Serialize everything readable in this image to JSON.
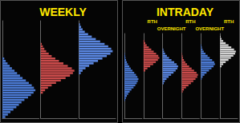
{
  "chart_data": [
    {
      "type": "bar",
      "title": "WEEKLY",
      "orientation": "horizontal",
      "tick_labels": false,
      "xlim": [
        0,
        100
      ],
      "categories": [
        null,
        null,
        null,
        null,
        null,
        null,
        null,
        null,
        null,
        null,
        null,
        null,
        null,
        null,
        null,
        null,
        null,
        null,
        null,
        null,
        null,
        null,
        null,
        null,
        null,
        null,
        null,
        null,
        null,
        null,
        null,
        null,
        null,
        null,
        null,
        null,
        null,
        null,
        null,
        null
      ],
      "series": [
        {
          "color": "#4a78d0",
          "values": [
            8,
            15,
            22,
            30,
            38,
            45,
            52,
            60,
            70,
            78,
            85,
            90,
            86,
            80,
            72,
            64,
            55,
            48,
            40,
            33,
            26,
            20,
            14,
            9,
            5,
            null,
            null,
            null,
            null,
            null,
            null,
            null,
            null,
            null,
            null,
            null,
            null,
            null,
            null,
            null
          ]
        },
        {
          "color": "#c84a4a",
          "values": [
            null,
            null,
            null,
            null,
            null,
            null,
            null,
            null,
            null,
            null,
            6,
            12,
            20,
            30,
            42,
            55,
            68,
            80,
            88,
            92,
            85,
            74,
            62,
            50,
            40,
            30,
            22,
            15,
            10,
            6,
            3,
            null,
            null,
            null,
            null,
            null,
            null,
            null,
            null,
            null
          ]
        },
        {
          "color": "#5a86e0",
          "values": [
            null,
            null,
            null,
            null,
            null,
            null,
            null,
            null,
            null,
            null,
            null,
            null,
            null,
            null,
            null,
            null,
            null,
            null,
            5,
            10,
            18,
            28,
            40,
            52,
            64,
            76,
            86,
            92,
            88,
            80,
            70,
            58,
            46,
            35,
            25,
            16,
            10,
            6,
            3,
            null
          ]
        }
      ]
    },
    {
      "type": "bar",
      "title": "INTRADAY",
      "orientation": "horizontal",
      "tick_labels": false,
      "xlim": [
        0,
        100
      ],
      "annotations": [
        null,
        "RTH",
        "OVERNIGHT",
        "RTH",
        "OVERNIGHT",
        "RTH"
      ],
      "categories": [
        null,
        null,
        null,
        null,
        null,
        null,
        null,
        null,
        null,
        null,
        null,
        null,
        null,
        null,
        null,
        null,
        null,
        null,
        null,
        null,
        null,
        null,
        null,
        null,
        null,
        null,
        null,
        null,
        null,
        null,
        null,
        null,
        null,
        null,
        null,
        null,
        null,
        null,
        null,
        null
      ],
      "series": [
        {
          "color": "#4a78d0",
          "values": [
            null,
            null,
            null,
            null,
            null,
            null,
            null,
            null,
            4,
            8,
            14,
            22,
            30,
            40,
            52,
            62,
            70,
            76,
            80,
            74,
            66,
            56,
            46,
            36,
            28,
            20,
            14,
            9,
            6,
            4,
            2,
            null,
            null,
            null,
            null,
            null,
            null,
            null,
            null,
            null
          ]
        },
        {
          "color": "#c84a4a",
          "values": [
            null,
            null,
            null,
            null,
            null,
            null,
            null,
            null,
            null,
            null,
            null,
            null,
            null,
            null,
            null,
            null,
            null,
            null,
            null,
            null,
            null,
            null,
            10,
            22,
            38,
            55,
            70,
            82,
            90,
            84,
            72,
            58,
            44,
            30,
            18,
            10,
            5,
            null,
            null,
            null
          ]
        },
        {
          "color": "#5a86e0",
          "values": [
            null,
            null,
            null,
            null,
            null,
            null,
            null,
            null,
            null,
            null,
            null,
            null,
            null,
            null,
            null,
            null,
            6,
            12,
            22,
            34,
            48,
            62,
            74,
            84,
            88,
            80,
            66,
            50,
            36,
            24,
            14,
            8,
            4,
            null,
            null,
            null,
            null,
            null,
            null,
            null
          ]
        },
        {
          "color": "#c84a4a",
          "values": [
            null,
            null,
            null,
            null,
            null,
            null,
            null,
            null,
            null,
            null,
            null,
            null,
            5,
            12,
            24,
            38,
            52,
            66,
            78,
            88,
            92,
            84,
            70,
            56,
            42,
            30,
            20,
            12,
            7,
            4,
            2,
            null,
            null,
            null,
            null,
            null,
            null,
            null,
            null,
            null
          ]
        },
        {
          "color": "#4a78d0",
          "values": [
            null,
            null,
            null,
            null,
            null,
            null,
            null,
            null,
            null,
            null,
            null,
            null,
            null,
            null,
            null,
            null,
            null,
            null,
            4,
            10,
            20,
            32,
            46,
            60,
            72,
            80,
            76,
            64,
            50,
            38,
            26,
            16,
            9,
            5,
            3,
            null,
            null,
            null,
            null,
            null
          ]
        },
        {
          "color": "#d8d8d8",
          "values": [
            null,
            null,
            null,
            null,
            null,
            null,
            null,
            null,
            null,
            null,
            null,
            null,
            null,
            null,
            null,
            null,
            null,
            null,
            null,
            null,
            null,
            null,
            null,
            null,
            8,
            18,
            32,
            48,
            62,
            76,
            86,
            90,
            80,
            64,
            48,
            32,
            18,
            8,
            3,
            null
          ]
        }
      ]
    }
  ]
}
